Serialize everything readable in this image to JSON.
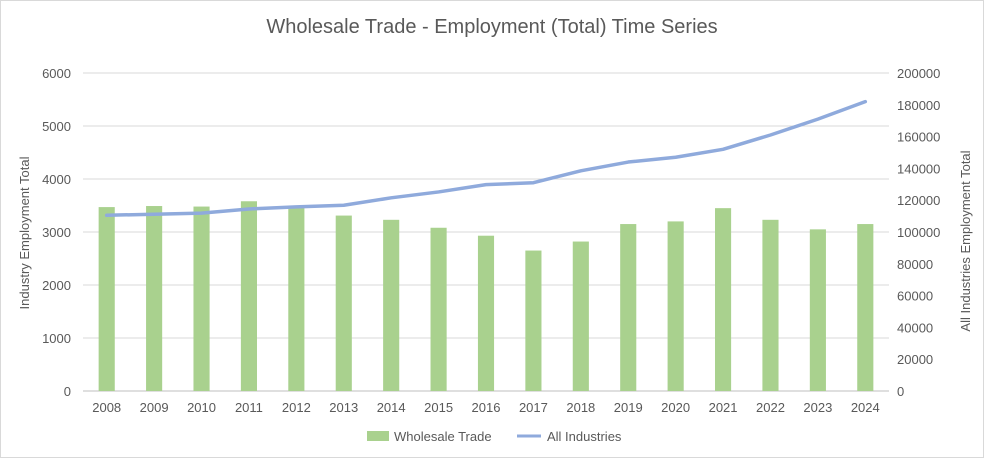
{
  "chart_data": {
    "type": "bar",
    "title": "Wholesale Trade - Employment (Total) Time Series",
    "xlabel": "",
    "ylabel": "Industry Employment Total",
    "y2label": "All Industries Employment Total",
    "categories": [
      "2008",
      "2009",
      "2010",
      "2011",
      "2012",
      "2013",
      "2014",
      "2015",
      "2016",
      "2017",
      "2018",
      "2019",
      "2020",
      "2021",
      "2022",
      "2023",
      "2024"
    ],
    "ylim": [
      0,
      6000
    ],
    "y2lim": [
      0,
      200000
    ],
    "yticks": [
      "0",
      "1000",
      "2000",
      "3000",
      "4000",
      "5000",
      "6000"
    ],
    "y2ticks": [
      "0",
      "20000",
      "40000",
      "60000",
      "80000",
      "100000",
      "120000",
      "140000",
      "160000",
      "180000",
      "200000"
    ],
    "grid": true,
    "legend_position": "bottom",
    "series": [
      {
        "name": "Wholesale Trade",
        "type": "bar",
        "axis": "left",
        "color": "#a9d18e",
        "values": [
          3470,
          3490,
          3480,
          3580,
          3480,
          3310,
          3230,
          3080,
          2930,
          2650,
          2820,
          3150,
          3200,
          3450,
          3230,
          3050,
          3150
        ]
      },
      {
        "name": "All Industries",
        "type": "line",
        "axis": "right",
        "color": "#8faadc",
        "values": [
          110500,
          111200,
          111900,
          114500,
          115800,
          116800,
          121500,
          125200,
          129800,
          131000,
          138500,
          144000,
          147000,
          152000,
          161000,
          171000,
          182000
        ]
      }
    ]
  }
}
